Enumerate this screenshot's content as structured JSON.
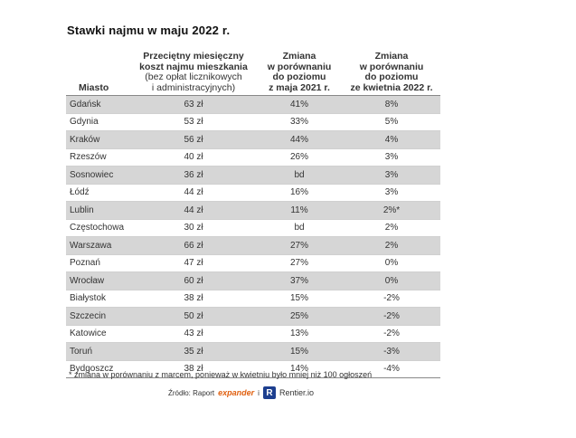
{
  "title": "Stawki najmu w maju 2022 r.",
  "table": {
    "headers": {
      "city": "Miasto",
      "cost_line1": "Przeciętny miesięczny",
      "cost_line2": "koszt najmu mieszkania",
      "cost_line3": "(bez opłat licznikowych",
      "cost_line4": "i administracyjnych)",
      "yoy_line1": "Zmiana",
      "yoy_line2": "w porównaniu",
      "yoy_line3": "do poziomu",
      "yoy_line4": "z maja 2021 r.",
      "mom_line1": "Zmiana",
      "mom_line2": "w porównaniu",
      "mom_line3": "do poziomu",
      "mom_line4": "ze kwietnia 2022 r."
    },
    "rows": [
      {
        "city": "Gdańsk",
        "cost": "63 zł",
        "yoy": "41%",
        "mom": "8%"
      },
      {
        "city": "Gdynia",
        "cost": "53 zł",
        "yoy": "33%",
        "mom": "5%"
      },
      {
        "city": "Kraków",
        "cost": "56 zł",
        "yoy": "44%",
        "mom": "4%"
      },
      {
        "city": "Rzeszów",
        "cost": "40 zł",
        "yoy": "26%",
        "mom": "3%"
      },
      {
        "city": "Sosnowiec",
        "cost": "36 zł",
        "yoy": "bd",
        "mom": "3%"
      },
      {
        "city": "Łódź",
        "cost": "44 zł",
        "yoy": "16%",
        "mom": "3%"
      },
      {
        "city": "Lublin",
        "cost": "44 zł",
        "yoy": "11%",
        "mom": "2%*"
      },
      {
        "city": "Częstochowa",
        "cost": "30 zł",
        "yoy": "bd",
        "mom": "2%"
      },
      {
        "city": "Warszawa",
        "cost": "66 zł",
        "yoy": "27%",
        "mom": "2%"
      },
      {
        "city": "Poznań",
        "cost": "47 zł",
        "yoy": "27%",
        "mom": "0%"
      },
      {
        "city": "Wrocław",
        "cost": "60 zł",
        "yoy": "37%",
        "mom": "0%"
      },
      {
        "city": "Białystok",
        "cost": "38 zł",
        "yoy": "15%",
        "mom": "-2%"
      },
      {
        "city": "Szczecin",
        "cost": "50 zł",
        "yoy": "25%",
        "mom": "-2%"
      },
      {
        "city": "Katowice",
        "cost": "43 zł",
        "yoy": "13%",
        "mom": "-2%"
      },
      {
        "city": "Toruń",
        "cost": "35 zł",
        "yoy": "15%",
        "mom": "-3%"
      },
      {
        "city": "Bydgoszcz",
        "cost": "38 zł",
        "yoy": "14%",
        "mom": "-4%"
      }
    ]
  },
  "footnote": "* zmiana w porównaniu z marcem, ponieważ w kwietniu było mniej niż 100 ogłoszeń",
  "source": {
    "label": "Źródło: Raport",
    "logo1": "expander",
    "connector": "i",
    "logo2_mark": "R",
    "logo2_text": "Rentier.io"
  }
}
